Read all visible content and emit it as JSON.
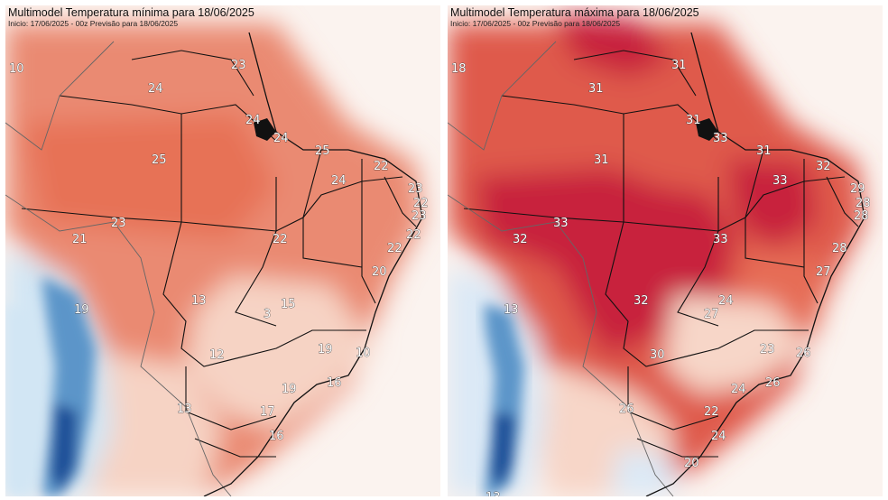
{
  "colors": {
    "min": {
      "base": "#ea8a72",
      "bg": "#fbf3ef",
      "warm": "#e77257",
      "pale": "#f6d3c4",
      "cool": "#d2e6f4",
      "blue": "#5b95c9",
      "deepblue": "#1f4f98"
    },
    "max": {
      "base": "#df5a4c",
      "bg": "#fbf3ef",
      "hot": "#c8243c",
      "warm": "#e66d57",
      "pale": "#f7d6c8",
      "cool": "#dbe9f6",
      "blue": "#5b95c9",
      "deepblue": "#1f4f98"
    },
    "border": "#111111",
    "label_fill": "#ffffff",
    "label_stroke": "#333333"
  },
  "min_map": {
    "title": "Multimodel Temperatura mínima para 18/06/2025",
    "subtitle": "Inicio: 17/06/2025 - 00z  Previsão para 18/06/2025",
    "labels": [
      "10",
      "23",
      "24",
      "24",
      "24",
      "25",
      "25",
      "22",
      "24",
      "23",
      "22",
      "23",
      "23",
      "21",
      "22",
      "22",
      "22",
      "20",
      "13",
      "15",
      "3",
      "19",
      "12",
      "19",
      "10",
      "16",
      "19",
      "13",
      "17",
      "16"
    ]
  },
  "max_map": {
    "title": "Multimodel Temperatura máxima para 18/06/2025",
    "subtitle": "Inicio: 17/06/2025 - 00z  Previsão para 18/06/2025",
    "labels": [
      "18",
      "31",
      "31",
      "31",
      "33",
      "31",
      "31",
      "32",
      "33",
      "29",
      "28",
      "28",
      "33",
      "32",
      "33",
      "28",
      "27",
      "13",
      "24",
      "27",
      "32",
      "30",
      "23",
      "26",
      "26",
      "24",
      "26",
      "22",
      "24",
      "20",
      "13"
    ]
  }
}
